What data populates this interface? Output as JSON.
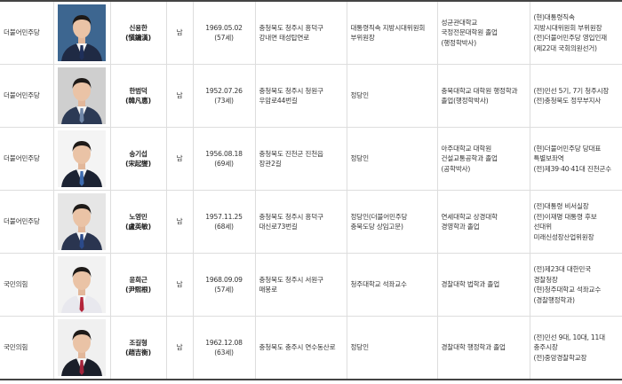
{
  "candidates": [
    {
      "party": "더불어민주당",
      "name": "신용한",
      "hanja": "(愼鏞漢)",
      "gender": "남",
      "birth": "1969.05.02",
      "age": "(57세)",
      "address": [
        "충청북도 청주시 흥덕구",
        "강내면 태성탑연로"
      ],
      "occupation": [
        "대통령직속 지방시대위원회",
        "부위원장"
      ],
      "education": [
        "성균관대학교",
        "국정전문대학원 졸업",
        "(행정학박사)"
      ],
      "career": [
        "(현)대통령직속",
        "지방시대위원회 부위원장",
        "(전)더불어민주당 영입인재",
        "(제22대 국회의원선거)"
      ],
      "photo_bg": "#3d6690",
      "suit": "#1f2a44",
      "tie": "#1e2f5a"
    },
    {
      "party": "더불어민주당",
      "name": "한범덕",
      "hanja": "(韓凡悳)",
      "gender": "남",
      "birth": "1952.07.26",
      "age": "(73세)",
      "address": [
        "충청북도 청주시 청원구",
        "우암로44번길"
      ],
      "occupation": [
        "정당인"
      ],
      "education": [
        "충북대학교 대학원 행정학과",
        "졸업(행정학박사)"
      ],
      "career": [
        "(전)민선 5기, 7기 청주시장",
        "(전)충청북도 정무부지사"
      ],
      "photo_bg": "#cfcfcf",
      "suit": "#2c3a55",
      "tie": "#6f86a8"
    },
    {
      "party": "더불어민주당",
      "name": "송기섭",
      "hanja": "(宋起燮)",
      "gender": "남",
      "birth": "1956.08.18",
      "age": "(69세)",
      "address": [
        "충청북도 진천군 진천읍",
        "장관2길"
      ],
      "occupation": [
        "정당인"
      ],
      "education": [
        "아주대학교 대학원",
        "건설교통공학과 졸업",
        "(공학박사)"
      ],
      "career": [
        "(현)더불어민주당 당대표",
        "특별보좌역",
        "(전)제39·40·41대 진천군수"
      ],
      "photo_bg": "#f4f4f4",
      "suit": "#1c2333",
      "tie": "#3d6bb0"
    },
    {
      "party": "더불어민주당",
      "name": "노영민",
      "hanja": "(盧英敏)",
      "gender": "남",
      "birth": "1957.11.25",
      "age": "(68세)",
      "address": [
        "충청북도 청주시 흥덕구",
        "대신로73번길"
      ],
      "occupation": [
        "정당인(더불어민주당",
        "충북도당 상임고문)"
      ],
      "education": [
        "연세대학교 상경대학",
        "경영학과 졸업"
      ],
      "career": [
        "(전)대통령 비서실장",
        "(전)이재명 대통령 후보",
        "선대위",
        "미래신성장산업위원장"
      ],
      "photo_bg": "#e6e6e6",
      "suit": "#2a3550",
      "tie": "#2b4a8a"
    },
    {
      "party": "국민의힘",
      "name": "윤희근",
      "hanja": "(尹熙根)",
      "gender": "남",
      "birth": "1968.09.09",
      "age": "(57세)",
      "address": [
        "충청북도 청주시 서원구",
        "매봉로"
      ],
      "occupation": [
        "청주대학교 석좌교수"
      ],
      "education": [
        "경찰대학 법학과 졸업"
      ],
      "career": [
        "(전)제23대 대한민국",
        "경찰청장",
        "(현)청주대학교 석좌교수",
        "(경찰행정학과)"
      ],
      "photo_bg": "#f2f2f2",
      "suit": "#e8e8ee",
      "tie": "#b3243a"
    },
    {
      "party": "국민의힘",
      "name": "조길형",
      "hanja": "(趙吉衡)",
      "gender": "남",
      "birth": "1962.12.08",
      "age": "(63세)",
      "address": [
        "충청북도 충주시 연수동산로"
      ],
      "occupation": [
        "정당인"
      ],
      "education": [
        "경찰대학 행정학과 졸업"
      ],
      "career": [
        "(전)민선 9대, 10대, 11대",
        "충주시장",
        "(전)중앙경찰학교장"
      ],
      "photo_bg": "#f0f0f0",
      "suit": "#1b1f2a",
      "tie": "#a3233a"
    }
  ]
}
